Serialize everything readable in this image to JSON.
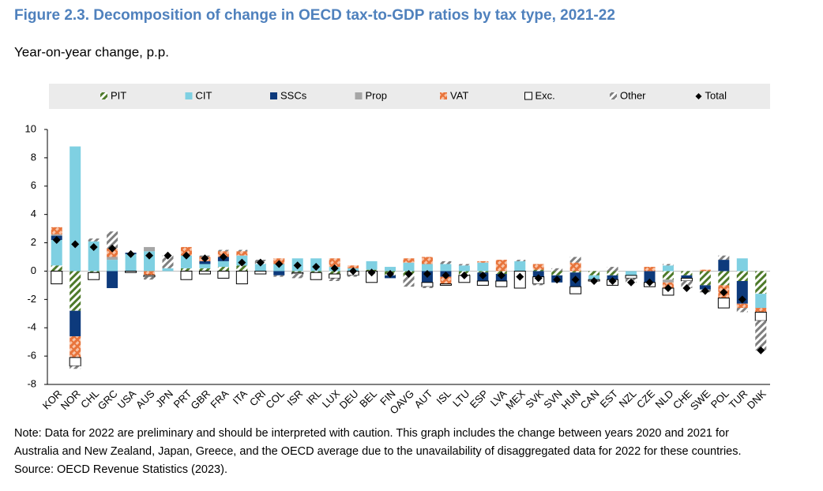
{
  "chart_data": {
    "type": "bar",
    "stacked": true,
    "title": "Figure 2.3. Decomposition of change in OECD tax-to-GDP ratios by tax type, 2021-22",
    "subtitle": "Year-on-year change, p.p.",
    "notes": [
      "Note: Data for 2022 are preliminary and should be interpreted with caution. This graph includes the change between years 2020 and 2021 for",
      "Australia and New Zealand, Japan, Greece, and the OECD average due to the unavailability of disaggregated data for 2022 for these countries.",
      "Source: OECD Revenue Statistics (2023)."
    ],
    "categories": [
      "KOR",
      "NOR",
      "CHL",
      "GRC",
      "USA",
      "AUS",
      "JPN",
      "PRT",
      "GBR",
      "FRA",
      "ITA",
      "CRI",
      "COL",
      "ISR",
      "IRL",
      "LUX",
      "DEU",
      "BEL",
      "FIN",
      "OAVG",
      "AUT",
      "ISL",
      "LTU",
      "ESP",
      "LVA",
      "MEX",
      "SVK",
      "SVN",
      "HUN",
      "CAN",
      "EST",
      "NZL",
      "CZE",
      "NLD",
      "CHE",
      "SWE",
      "POL",
      "TUR",
      "DNK"
    ],
    "series": [
      {
        "name": "PIT",
        "color": "#4e7a2a",
        "hatch": "diagonal",
        "values": [
          0.4,
          -2.8,
          -0.1,
          0,
          0,
          0,
          0,
          0.2,
          0.2,
          0.3,
          0.4,
          0,
          0,
          -0.1,
          -0.1,
          -0.2,
          0,
          0.1,
          -0.3,
          -0.3,
          0,
          0,
          -0.3,
          -0.1,
          -0.2,
          0,
          0.1,
          -0.3,
          -0.1,
          -0.3,
          -0.3,
          0,
          0,
          -0.6,
          -0.3,
          -1.0,
          -1.0,
          -0.7,
          -1.6
        ]
      },
      {
        "name": "CIT",
        "color": "#7fd0e2",
        "hatch": "none",
        "values": [
          1.8,
          8.8,
          2.1,
          0.8,
          1.2,
          1.4,
          0.2,
          0.9,
          0.3,
          0.4,
          0.7,
          0.5,
          0.5,
          0.9,
          0.9,
          0.3,
          0.2,
          0.6,
          0.3,
          0.6,
          0.5,
          0.5,
          0.4,
          0.6,
          0,
          0.7,
          0,
          0,
          0,
          -0.3,
          0,
          -0.3,
          0,
          0.4,
          0,
          0,
          0,
          0.9,
          -1.0
        ]
      },
      {
        "name": "SSCs",
        "color": "#0d3a7c",
        "hatch": "none",
        "values": [
          0.3,
          -1.8,
          0,
          -1.2,
          0.1,
          0,
          0,
          0,
          0.2,
          0.3,
          0,
          0,
          -0.3,
          0,
          0,
          0,
          0,
          0,
          -0.2,
          0,
          -0.8,
          -0.4,
          0,
          -0.6,
          -0.5,
          0,
          -0.4,
          -0.5,
          -1.0,
          0,
          -0.3,
          0,
          -0.8,
          0,
          -0.2,
          -0.3,
          0.8,
          -1.6,
          0
        ]
      },
      {
        "name": "Prop",
        "color": "#a6a6a6",
        "hatch": "none",
        "values": [
          0.1,
          0,
          0,
          0.2,
          0,
          0.3,
          0,
          0,
          0,
          0,
          0,
          0,
          0,
          0,
          0,
          0,
          0,
          0,
          0,
          0,
          0,
          0,
          0,
          0,
          0,
          0,
          0,
          0,
          0,
          0,
          0,
          0,
          0,
          -0.2,
          0,
          0,
          0,
          0,
          0
        ]
      },
      {
        "name": "VAT",
        "color": "#e8743b",
        "hatch": "cross",
        "values": [
          0.5,
          -1.5,
          0,
          0.6,
          0,
          -0.3,
          0,
          0.6,
          0.3,
          0.4,
          0.3,
          0,
          0.4,
          0,
          0,
          0.6,
          0.2,
          0,
          0,
          0.3,
          0.5,
          -0.5,
          0,
          0.1,
          0.8,
          0,
          0.4,
          0,
          0.6,
          0,
          0,
          0,
          0.3,
          -0.4,
          0,
          0.1,
          -0.9,
          -0.3,
          -0.3
        ]
      },
      {
        "name": "Exc.",
        "color": "#ffffff",
        "outline": "#000000",
        "hatch": "none",
        "values": [
          -0.9,
          -0.6,
          -0.5,
          0,
          -0.1,
          -0.1,
          0,
          -0.6,
          -0.2,
          -0.5,
          -0.9,
          -0.2,
          0,
          -0.1,
          -0.5,
          -0.3,
          -0.3,
          -0.8,
          0,
          0,
          -0.3,
          -0.1,
          -0.5,
          -0.3,
          -0.4,
          -1.2,
          -0.5,
          0,
          -0.5,
          -0.1,
          -0.4,
          -0.2,
          -0.3,
          -0.5,
          -0.2,
          0,
          -0.7,
          0,
          -0.6
        ]
      },
      {
        "name": "Other",
        "color": "#7f7f7f",
        "hatch": "diagonal",
        "values": [
          0,
          -0.2,
          0.2,
          1.2,
          0,
          -0.2,
          0.9,
          0,
          0.1,
          0.1,
          0.1,
          0.3,
          -0.1,
          -0.3,
          0,
          -0.2,
          -0.1,
          0,
          0,
          -0.8,
          -0.1,
          0.2,
          0.1,
          0,
          0,
          0.1,
          -0.1,
          0.2,
          0.4,
          0,
          0.3,
          -0.3,
          0,
          0.1,
          -0.5,
          -0.2,
          0.3,
          -0.3,
          -2.1
        ]
      },
      {
        "name": "Total",
        "color": "#000000",
        "marker": "diamond",
        "values": [
          2.2,
          1.9,
          1.7,
          1.6,
          1.2,
          1.1,
          1.1,
          1.1,
          0.9,
          1.0,
          0.6,
          0.6,
          0.5,
          0.4,
          0.3,
          0.2,
          0,
          -0.1,
          -0.2,
          -0.2,
          -0.2,
          -0.3,
          -0.3,
          -0.3,
          -0.3,
          -0.4,
          -0.5,
          -0.6,
          -0.6,
          -0.7,
          -0.7,
          -0.8,
          -0.8,
          -1.2,
          -1.2,
          -1.4,
          -1.5,
          -2.0,
          -5.6
        ]
      }
    ],
    "ylim": [
      -8,
      10
    ],
    "yticks": [
      -8,
      -6,
      -4,
      -2,
      0,
      2,
      4,
      6,
      8,
      10
    ],
    "legend": "top"
  }
}
